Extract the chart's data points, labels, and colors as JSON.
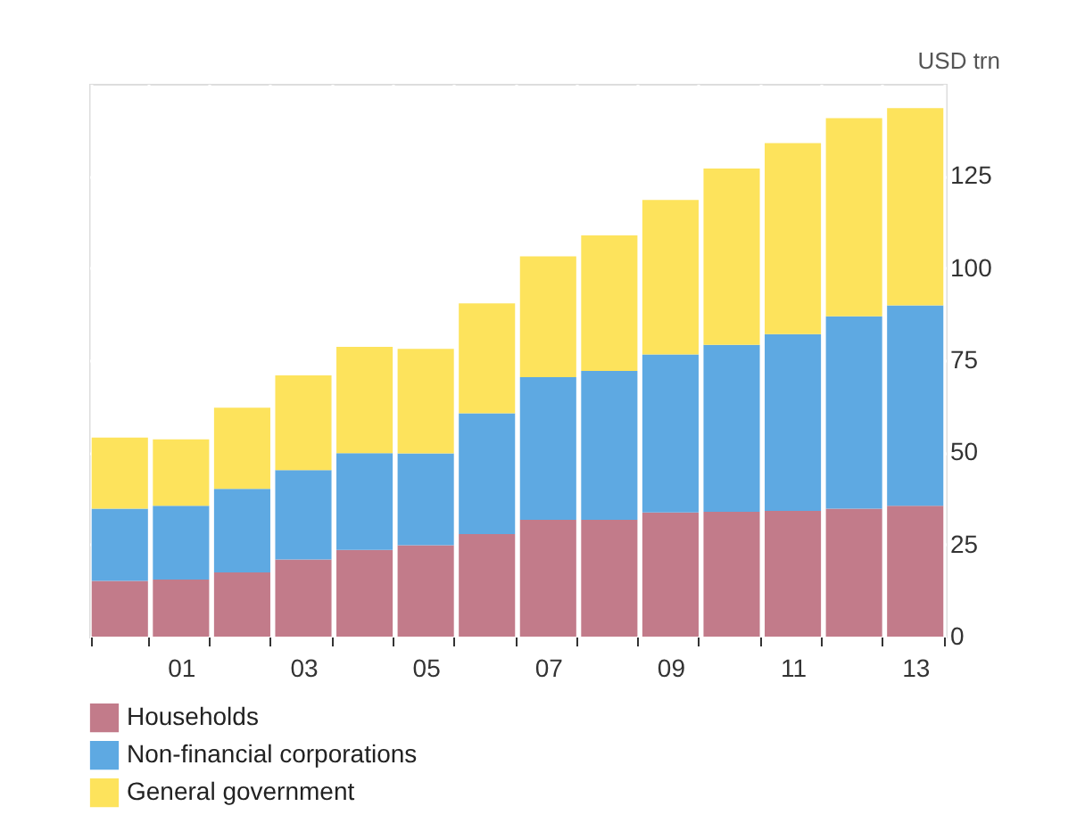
{
  "chart_data": {
    "type": "bar",
    "stacked": true,
    "ylabel": "USD trn",
    "categories": [
      null,
      "01",
      null,
      "03",
      null,
      "05",
      null,
      "07",
      null,
      "09",
      null,
      "11",
      null,
      "13"
    ],
    "series": [
      {
        "name": "Households",
        "color": "#c27b8a",
        "values": [
          15.1,
          15.5,
          17.4,
          20.9,
          23.5,
          24.8,
          27.8,
          31.7,
          31.7,
          33.7,
          33.9,
          34.1,
          34.7,
          35.5
        ]
      },
      {
        "name": "Non-financial corporations",
        "color": "#5ea9e2",
        "values": [
          19.6,
          20.0,
          22.7,
          24.3,
          26.3,
          24.9,
          32.8,
          38.7,
          40.4,
          42.9,
          45.3,
          48.0,
          52.2,
          54.4
        ]
      },
      {
        "name": "General government",
        "color": "#fde35c",
        "values": [
          19.3,
          18.0,
          22.0,
          25.7,
          28.8,
          28.4,
          29.8,
          32.8,
          36.8,
          41.9,
          47.8,
          51.8,
          53.8,
          53.5
        ]
      }
    ],
    "ylim": [
      0,
      150
    ],
    "yticks": [
      0,
      25,
      50,
      75,
      100,
      125
    ],
    "grid": true,
    "legend": "bottom"
  }
}
